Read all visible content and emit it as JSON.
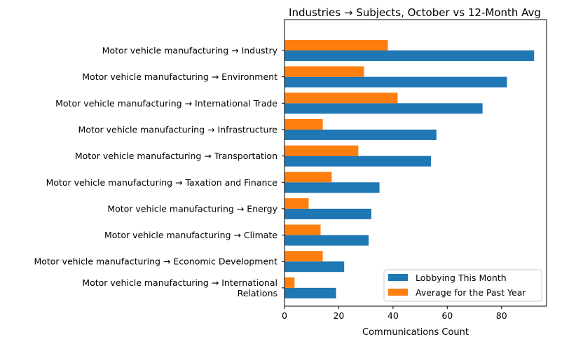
{
  "chart_data": {
    "type": "bar",
    "orientation": "horizontal",
    "title": "Industries → Subjects, October vs 12-Month Avg",
    "xlabel": "Communications Count",
    "ylabel": "",
    "xlim": [
      0,
      96.6
    ],
    "xticks": [
      "0",
      "20",
      "40",
      "60",
      "80"
    ],
    "grid": false,
    "legend_position": "lower-right",
    "categories": [
      "Motor vehicle manufacturing → Industry",
      "Motor vehicle manufacturing → Environment",
      "Motor vehicle manufacturing → International Trade",
      "Motor vehicle manufacturing → Infrastructure",
      "Motor vehicle manufacturing → Transportation",
      "Motor vehicle manufacturing → Taxation and Finance",
      "Motor vehicle manufacturing → Energy",
      "Motor vehicle manufacturing → Climate",
      "Motor vehicle manufacturing → Economic Development",
      "Motor vehicle manufacturing → International\nRelations"
    ],
    "series": [
      {
        "name": "Lobbying This Month",
        "color": "#1f77b4",
        "values": [
          92,
          82,
          73,
          56,
          54,
          35,
          32,
          31,
          22,
          19
        ]
      },
      {
        "name": "Average for the Past Year",
        "color": "#ff7f0e",
        "values": [
          38.1,
          29.3,
          41.7,
          14.1,
          27.2,
          17.4,
          8.9,
          13.3,
          14.1,
          3.7
        ]
      }
    ]
  }
}
